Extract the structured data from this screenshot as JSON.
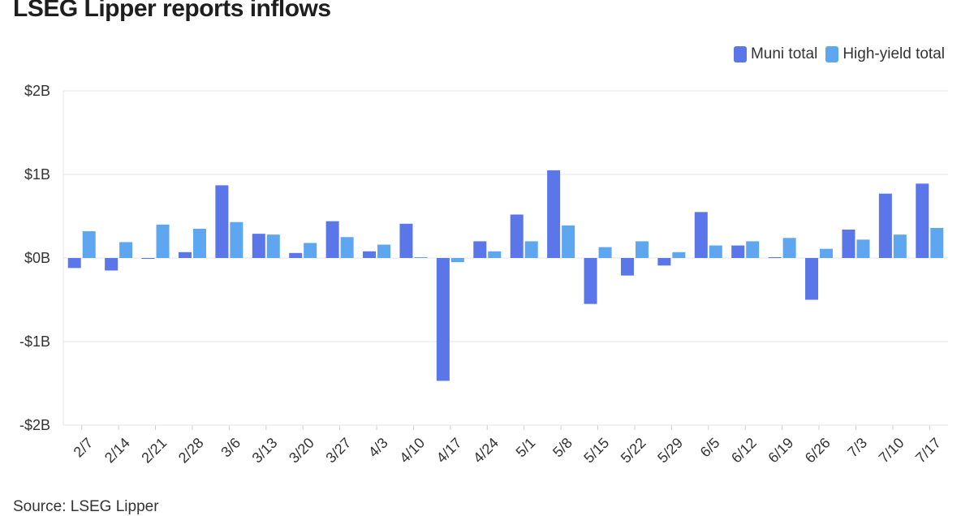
{
  "title": "LSEG Lipper reports inflows",
  "source": "Source: LSEG Lipper",
  "chart_data": {
    "type": "bar",
    "categories": [
      "2/7",
      "2/14",
      "2/21",
      "2/28",
      "3/6",
      "3/13",
      "3/20",
      "3/27",
      "4/3",
      "4/10",
      "4/17",
      "4/24",
      "5/1",
      "5/8",
      "5/15",
      "5/22",
      "5/29",
      "6/5",
      "6/12",
      "6/19",
      "6/26",
      "7/3",
      "7/10",
      "7/17"
    ],
    "series": [
      {
        "name": "Muni total",
        "color": "#5b76e8",
        "values": [
          -0.12,
          -0.15,
          -0.01,
          0.07,
          0.87,
          0.29,
          0.06,
          0.44,
          0.08,
          0.41,
          -1.47,
          0.2,
          0.52,
          1.05,
          -0.55,
          -0.21,
          -0.09,
          0.55,
          0.15,
          0.01,
          -0.5,
          0.34,
          0.77,
          0.89
        ]
      },
      {
        "name": "High-yield total",
        "color": "#5ea6f0",
        "values": [
          0.32,
          0.19,
          0.4,
          0.35,
          0.43,
          0.28,
          0.18,
          0.25,
          0.16,
          0.01,
          -0.05,
          0.08,
          0.2,
          0.39,
          0.13,
          0.2,
          0.07,
          0.15,
          0.2,
          0.24,
          0.11,
          0.22,
          0.28,
          0.36
        ]
      }
    ],
    "yticks": [
      2,
      1,
      0,
      -1,
      -2
    ],
    "ytick_labels": [
      "$2B",
      "$1B",
      "$0B",
      "-$1B",
      "-$2B"
    ],
    "ylim": [
      -2,
      2
    ],
    "unit": "billions USD",
    "grid": true,
    "legend_position": "top-right"
  }
}
